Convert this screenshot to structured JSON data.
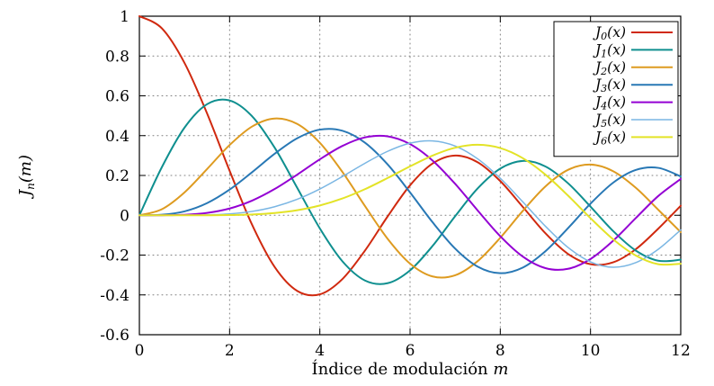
{
  "chart_data": {
    "type": "line",
    "title": "",
    "xlabel": {
      "text": "Índice de modulación",
      "var": "m"
    },
    "ylabel": {
      "base": "J",
      "sub": "n",
      "args": "(m)"
    },
    "xlim": [
      0,
      12
    ],
    "ylim": [
      -0.6,
      1
    ],
    "xticks": [
      0,
      2,
      4,
      6,
      8,
      10,
      12
    ],
    "yticks": [
      1,
      0.8,
      0.6,
      0.4,
      0.2,
      0,
      -0.2,
      -0.4,
      -0.6
    ],
    "grid": true,
    "legend_position": "top-right",
    "x": [
      0,
      0.5,
      1,
      1.5,
      2,
      2.5,
      3,
      3.5,
      4,
      4.5,
      5,
      5.5,
      6,
      6.5,
      7,
      7.5,
      8,
      8.5,
      9,
      9.5,
      10,
      10.5,
      11,
      11.5,
      12
    ],
    "series": [
      {
        "name": "J_0(x)",
        "label": {
          "base": "J",
          "sub": "0",
          "args": "(x)"
        },
        "color": "#d0290f",
        "width": 2,
        "values": [
          1.0,
          0.9385,
          0.7652,
          0.5118,
          0.2239,
          -0.0484,
          -0.2601,
          -0.3801,
          -0.3971,
          -0.3205,
          -0.1776,
          -0.0068,
          0.1506,
          0.2601,
          0.3001,
          0.2663,
          0.1717,
          0.0419,
          -0.0903,
          -0.1939,
          -0.2459,
          -0.2366,
          -0.1712,
          -0.0677,
          0.0477
        ]
      },
      {
        "name": "J_1(x)",
        "label": {
          "base": "J",
          "sub": "1",
          "args": "(x)"
        },
        "color": "#0f8f8f",
        "width": 2,
        "values": [
          0,
          0.2423,
          0.4401,
          0.5579,
          0.5767,
          0.4971,
          0.3391,
          0.1374,
          -0.066,
          -0.2311,
          -0.3276,
          -0.3414,
          -0.2767,
          -0.1538,
          -0.0047,
          0.1352,
          0.2346,
          0.2731,
          0.2453,
          0.1613,
          0.0435,
          -0.0789,
          -0.1768,
          -0.2284,
          -0.2234
        ]
      },
      {
        "name": "J_2(x)",
        "label": {
          "base": "J",
          "sub": "2",
          "args": "(x)"
        },
        "color": "#de9b20",
        "width": 2,
        "values": [
          0,
          0.0306,
          0.1149,
          0.2321,
          0.3528,
          0.4461,
          0.4861,
          0.4586,
          0.3641,
          0.2178,
          0.0466,
          -0.1173,
          -0.2429,
          -0.3074,
          -0.3014,
          -0.2303,
          -0.113,
          0.0223,
          0.1448,
          0.2279,
          0.2546,
          0.2216,
          0.139,
          0.0279,
          -0.0849
        ]
      },
      {
        "name": "J_3(x)",
        "label": {
          "base": "J",
          "sub": "3",
          "args": "(x)"
        },
        "color": "#2878b5",
        "width": 2,
        "values": [
          0,
          0.0026,
          0.0196,
          0.061,
          0.1289,
          0.2166,
          0.3091,
          0.3868,
          0.4302,
          0.4247,
          0.3648,
          0.2561,
          0.1148,
          -0.0353,
          -0.1676,
          -0.2581,
          -0.2911,
          -0.2626,
          -0.1809,
          -0.0653,
          0.0584,
          0.1633,
          0.2273,
          0.2381,
          0.1951
        ]
      },
      {
        "name": "J_4(x)",
        "label": {
          "base": "J",
          "sub": "4",
          "args": "(x)"
        },
        "color": "#9400d3",
        "width": 2,
        "values": [
          0,
          0.0002,
          0.0025,
          0.0118,
          0.034,
          0.0738,
          0.132,
          0.2044,
          0.2811,
          0.3484,
          0.3912,
          0.3967,
          0.3576,
          0.2748,
          0.1578,
          0.0238,
          -0.1054,
          -0.2077,
          -0.2655,
          -0.2691,
          -0.2196,
          -0.1283,
          -0.015,
          0.0963,
          0.1825
        ]
      },
      {
        "name": "J_5(x)",
        "label": {
          "base": "J",
          "sub": "5",
          "args": "(x)"
        },
        "color": "#7ab6e3",
        "width": 1.5,
        "values": [
          0,
          0.0,
          0.0002,
          0.0018,
          0.007,
          0.0195,
          0.043,
          0.0804,
          0.1321,
          0.1947,
          0.2611,
          0.3209,
          0.3621,
          0.3736,
          0.3479,
          0.2833,
          0.1858,
          0.0671,
          -0.055,
          -0.1613,
          -0.2341,
          -0.2611,
          -0.2383,
          -0.1711,
          -0.0735
        ]
      },
      {
        "name": "J_6(x)",
        "label": {
          "base": "J",
          "sub": "6",
          "args": "(x)"
        },
        "color": "#e3e327",
        "width": 2,
        "values": [
          0,
          0.0,
          0.0,
          0.0002,
          0.0012,
          0.0042,
          0.0114,
          0.0254,
          0.0491,
          0.0843,
          0.131,
          0.1868,
          0.2458,
          0.2999,
          0.3392,
          0.3541,
          0.3376,
          0.2867,
          0.2043,
          0.0993,
          -0.0145,
          -0.1203,
          -0.2016,
          -0.2458,
          -0.2437
        ]
      }
    ]
  },
  "colors": {
    "background": "#ffffff",
    "axis": "#000000",
    "grid": "#7f7f7f",
    "legend_border": "#000000",
    "legend_fill": "#ffffff",
    "text": "#000000"
  }
}
